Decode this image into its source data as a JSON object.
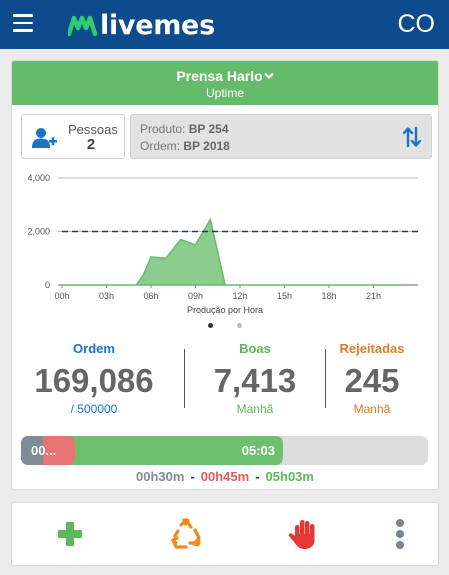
{
  "header": {
    "logo_text": "livemes",
    "user_initials": "CO"
  },
  "machine": {
    "name": "Prensa Harlo",
    "status": "Uptime"
  },
  "people": {
    "label": "Pessoas",
    "count": "2"
  },
  "product": {
    "product_label": "Produto:",
    "product_value": "BP 254",
    "order_label": "Ordem:",
    "order_value": "BP 2018"
  },
  "chart_data": {
    "type": "area",
    "title": "Produção por Hora",
    "x_ticks": [
      "00h",
      "03h",
      "06h",
      "09h",
      "12h",
      "15h",
      "18h",
      "21h"
    ],
    "y_ticks": [
      "0",
      "2,000",
      "4,000"
    ],
    "ylim": [
      0,
      4000
    ],
    "target": 2000,
    "x_hours": [
      0,
      1,
      2,
      3,
      4,
      5,
      5.5,
      6,
      7,
      8,
      9,
      10,
      11,
      12,
      13,
      14,
      15,
      16,
      17,
      18,
      19,
      20,
      21,
      22,
      23
    ],
    "values": [
      0,
      0,
      0,
      0,
      0,
      0,
      400,
      1050,
      1000,
      1700,
      1500,
      2450,
      0,
      0,
      0,
      0,
      0,
      0,
      0,
      0,
      0,
      0,
      0,
      0,
      0
    ],
    "grid": true,
    "series_color": "#66bb6a",
    "target_color": "#1f3b63"
  },
  "kpis": {
    "order": {
      "label": "Ordem",
      "value": "169,086",
      "sub": "/ 500000",
      "color": "#1a73c8"
    },
    "good": {
      "label": "Boas",
      "value": "7,413",
      "sub": "Manhã",
      "color": "#5cb85c"
    },
    "rejected": {
      "label": "Rejeitadas",
      "value": "245",
      "sub": "Manhã",
      "color": "#e07b24"
    }
  },
  "timebar": {
    "overlap_label": "00...",
    "green_label": "05:03",
    "gray_total": "00h30m",
    "red_total": "00h45m",
    "green_total": "05h03m",
    "separator": "-",
    "gray_color": "#7f8b99",
    "red_color": "#e87474",
    "green_color": "#6cc06e"
  },
  "actions": {
    "icons": [
      "plus-icon",
      "recycle-icon",
      "hand-stop-icon",
      "more-vertical-icon"
    ]
  }
}
